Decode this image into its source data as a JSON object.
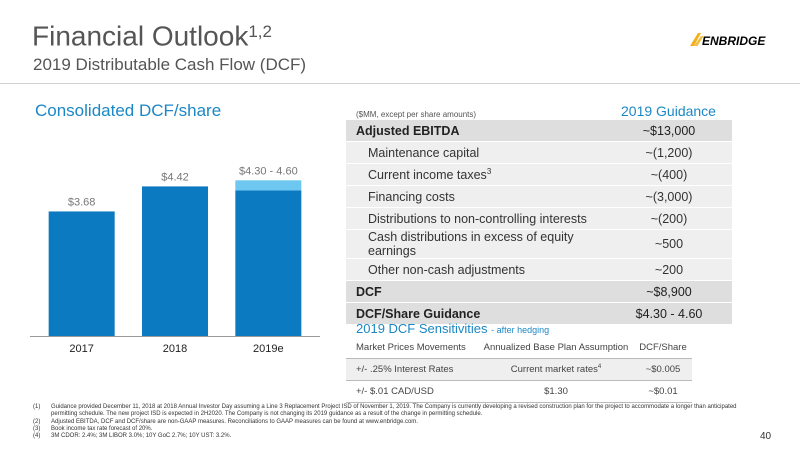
{
  "header": {
    "title": "Financial Outlook",
    "title_superscript": "1,2",
    "subtitle": "2019 Distributable Cash Flow (DCF)",
    "logo_text": "ENBRIDGE",
    "logo_icon": "enbridge-wing-logo"
  },
  "chart_title": "Consolidated DCF/share",
  "chart_data": {
    "type": "bar",
    "title": "Consolidated DCF/share",
    "categories": [
      "2017",
      "2018",
      "2019e"
    ],
    "values": [
      3.68,
      4.42,
      4.3
    ],
    "range_top": [
      null,
      null,
      4.6
    ],
    "data_labels": [
      "$3.68",
      "$4.42",
      "$4.30 - 4.60"
    ],
    "colors": {
      "bar": "#0b7ac0",
      "range": "#6dc7f0"
    },
    "ylim": [
      0,
      5.2
    ],
    "grid": false
  },
  "dcf_table": {
    "units": "($MM, except per share amounts)",
    "header": "2019 Guidance",
    "rows": [
      {
        "label": "Adjusted EBITDA",
        "value": "~$13,000"
      },
      {
        "label": "Maintenance capital",
        "value": "~(1,200)"
      },
      {
        "label": "Current income taxes",
        "label_sup": "3",
        "value": "~(400)"
      },
      {
        "label": "Financing costs",
        "value": "~(3,000)"
      },
      {
        "label": "Distributions to non-controlling interests",
        "value": "~(200)"
      },
      {
        "label": "Cash distributions in excess of equity earnings",
        "value": "~500"
      },
      {
        "label": "Other non-cash adjustments",
        "value": "~200"
      },
      {
        "label": "DCF",
        "value": "~$8,900"
      },
      {
        "label": "DCF/Share Guidance",
        "value": "$4.30 - 4.60"
      }
    ]
  },
  "sensitivities": {
    "title": "2019 DCF Sensitivities",
    "note": "- after hedging",
    "headers": [
      "Market Prices Movements",
      "Annualized Base Plan Assumption",
      "DCF/Share"
    ],
    "rows": [
      {
        "movement": "+/- .25% Interest Rates",
        "assumption": "Current market rates",
        "assumption_sup": "4",
        "dcf_share": "~$0.005"
      },
      {
        "movement": "+/- $.01 CAD/USD",
        "assumption": "$1.30",
        "dcf_share": "~$0.01"
      }
    ]
  },
  "footnotes": [
    {
      "num": "(1)",
      "text": "Guidance provided December 11, 2018 at 2018 Annual Investor Day assuming a Line 3 Replacement Project ISD of November 1, 2019. The Company is currently developing a revised construction plan for the project to accommodate a longer than anticipated permitting schedule. The new project ISD is expected in 2H2020. The Company is not changing its 2019 guidance as a result of the change in permitting schedule."
    },
    {
      "num": "(2)",
      "text": "Adjusted EBITDA, DCF and DCF/share are non-GAAP measures. Reconciliations to GAAP measures can be found at www.enbridge.com."
    },
    {
      "num": "(3)",
      "text": "Book income tax rate forecast of 20%."
    },
    {
      "num": "(4)",
      "text": "3M CDOR: 2.4%; 3M LIBOR 3.0%; 10Y GoC 2.7%; 10Y UST: 3.2%."
    }
  ],
  "page_number": "40"
}
